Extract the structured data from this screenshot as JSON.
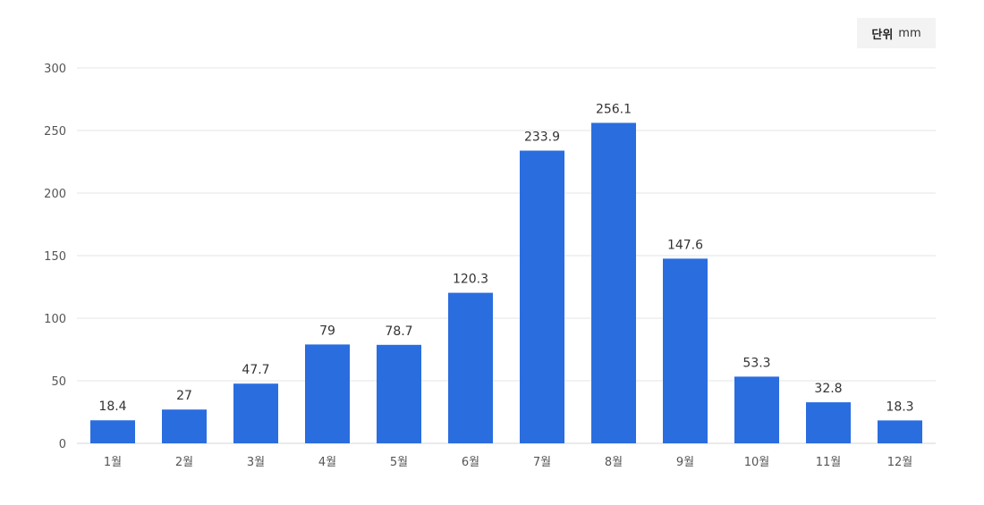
{
  "unit": {
    "label": "단위",
    "value": "mm"
  },
  "colors": {
    "bar": "#2a6ddf",
    "grid": "#e6e6e6",
    "axis": "#d6d6d6"
  },
  "chart_data": {
    "type": "bar",
    "categories": [
      "1월",
      "2월",
      "3월",
      "4월",
      "5월",
      "6월",
      "7월",
      "8월",
      "9월",
      "10월",
      "11월",
      "12월"
    ],
    "values": [
      18.4,
      27,
      47.7,
      79,
      78.7,
      120.3,
      233.9,
      256.1,
      147.6,
      53.3,
      32.8,
      18.3
    ],
    "value_labels": [
      "18.4",
      "27",
      "47.7",
      "79",
      "78.7",
      "120.3",
      "233.9",
      "256.1",
      "147.6",
      "53.3",
      "32.8",
      "18.3"
    ],
    "yticks": [
      0,
      50,
      100,
      150,
      200,
      250,
      300
    ],
    "ylim": [
      0,
      300
    ],
    "grid": true,
    "legend": "none"
  }
}
